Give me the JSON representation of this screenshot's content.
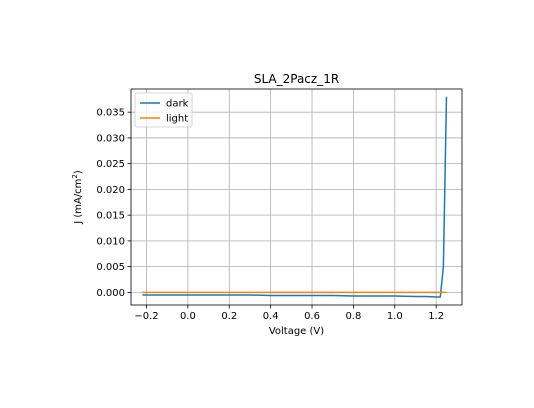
{
  "chart_data": {
    "type": "line",
    "title": "SLA_2Pacz_1R",
    "xlabel": "Voltage (V)",
    "ylabel_main": "J (mA/cm",
    "ylabel_sup": "2",
    "ylabel_close": ")",
    "xlim": [
      -0.275,
      1.325
    ],
    "ylim": [
      -0.00245,
      0.0395
    ],
    "xticks": [
      -0.2,
      0.0,
      0.2,
      0.4,
      0.6,
      0.8,
      1.0,
      1.2
    ],
    "xtick_labels": [
      "−0.2",
      "0.0",
      "0.2",
      "0.4",
      "0.6",
      "0.8",
      "1.0",
      "1.2"
    ],
    "yticks": [
      0.0,
      0.005,
      0.01,
      0.015,
      0.02,
      0.025,
      0.03,
      0.035
    ],
    "ytick_labels": [
      "0.000",
      "0.005",
      "0.010",
      "0.015",
      "0.020",
      "0.025",
      "0.030",
      "0.035"
    ],
    "grid": true,
    "legend_position": "top-left",
    "series": [
      {
        "name": "dark",
        "color": "#1f77b4",
        "x": [
          -0.22,
          -0.1,
          0.0,
          0.1,
          0.2,
          0.3,
          0.4,
          0.5,
          0.6,
          0.7,
          0.8,
          0.9,
          1.0,
          1.1,
          1.15,
          1.2,
          1.22,
          1.235,
          1.25
        ],
        "y": [
          -0.0005,
          -0.0005,
          -0.0005,
          -0.0005,
          -0.0005,
          -0.0005,
          -0.0006,
          -0.0006,
          -0.0006,
          -0.0006,
          -0.0007,
          -0.0007,
          -0.0007,
          -0.0008,
          -0.0008,
          -0.0009,
          -0.0009,
          0.005,
          0.038
        ]
      },
      {
        "name": "light",
        "color": "#ff7f0e",
        "x": [
          -0.22,
          0.0,
          0.2,
          0.4,
          0.6,
          0.8,
          1.0,
          1.2,
          1.25
        ],
        "y": [
          0.0,
          0.0,
          0.0,
          0.0,
          0.0,
          0.0,
          0.0,
          0.0,
          0.0
        ]
      }
    ]
  }
}
